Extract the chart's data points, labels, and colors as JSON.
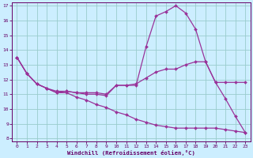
{
  "xlabel": "Windchill (Refroidissement éolien,°C)",
  "background_color": "#cceeff",
  "grid_color": "#99cccc",
  "line_color": "#993399",
  "xlim": [
    -0.5,
    23.5
  ],
  "ylim": [
    7.8,
    17.2
  ],
  "yticks": [
    8,
    9,
    10,
    11,
    12,
    13,
    14,
    15,
    16,
    17
  ],
  "xticks": [
    0,
    1,
    2,
    3,
    4,
    5,
    6,
    7,
    8,
    9,
    10,
    11,
    12,
    13,
    14,
    15,
    16,
    17,
    18,
    19,
    20,
    21,
    22,
    23
  ],
  "line1_x": [
    0,
    1,
    2,
    3,
    4,
    5,
    6,
    7,
    8,
    9,
    10,
    11,
    12,
    13,
    14,
    15,
    16,
    17,
    18,
    19,
    20,
    21,
    22,
    23
  ],
  "line1_y": [
    13.5,
    12.4,
    11.7,
    11.4,
    11.1,
    11.2,
    11.1,
    11.0,
    11.0,
    10.9,
    11.6,
    11.6,
    11.6,
    14.2,
    16.3,
    16.6,
    17.0,
    16.5,
    15.4,
    13.2,
    11.8,
    10.7,
    9.5,
    8.4
  ],
  "line2_x": [
    0,
    1,
    2,
    3,
    4,
    5,
    6,
    7,
    8,
    9,
    10,
    11,
    12,
    13,
    14,
    15,
    16,
    17,
    18,
    19,
    20,
    21,
    22,
    23
  ],
  "line2_y": [
    13.5,
    12.4,
    11.7,
    11.4,
    11.2,
    11.2,
    11.1,
    11.1,
    11.1,
    11.0,
    11.6,
    11.6,
    11.7,
    12.1,
    12.5,
    12.7,
    12.7,
    13.0,
    13.2,
    13.2,
    11.8,
    11.8,
    11.8,
    11.8
  ],
  "line3_x": [
    0,
    1,
    2,
    3,
    4,
    5,
    6,
    7,
    8,
    9,
    10,
    11,
    12,
    13,
    14,
    15,
    16,
    17,
    18,
    19,
    20,
    21,
    22,
    23
  ],
  "line3_y": [
    13.5,
    12.4,
    11.7,
    11.4,
    11.1,
    11.1,
    10.8,
    10.6,
    10.3,
    10.1,
    9.8,
    9.6,
    9.3,
    9.1,
    8.9,
    8.8,
    8.7,
    8.7,
    8.7,
    8.7,
    8.7,
    8.6,
    8.5,
    8.4
  ]
}
